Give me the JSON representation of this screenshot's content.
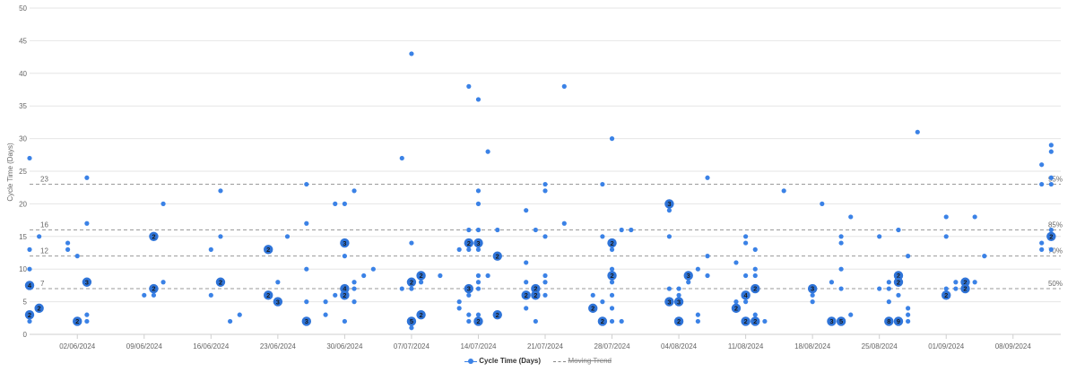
{
  "chart_data": {
    "type": "scatter",
    "ylabel": "Cycle Time (Days)",
    "ylim": [
      0,
      50
    ],
    "y_ticks": [
      "0",
      "5",
      "10",
      "15",
      "20",
      "25",
      "30",
      "35",
      "40",
      "45",
      "50"
    ],
    "x_range": [
      "2024-05-28",
      "2024-09-13"
    ],
    "x_ticks": [
      {
        "date": "2024-06-02",
        "label": "02/06/2024"
      },
      {
        "date": "2024-06-09",
        "label": "09/06/2024"
      },
      {
        "date": "2024-06-16",
        "label": "16/06/2024"
      },
      {
        "date": "2024-06-23",
        "label": "23/06/2024"
      },
      {
        "date": "2024-06-30",
        "label": "30/06/2024"
      },
      {
        "date": "2024-07-07",
        "label": "07/07/2024"
      },
      {
        "date": "2024-07-14",
        "label": "14/07/2024"
      },
      {
        "date": "2024-07-21",
        "label": "21/07/2024"
      },
      {
        "date": "2024-07-28",
        "label": "28/07/2024"
      },
      {
        "date": "2024-08-04",
        "label": "04/08/2024"
      },
      {
        "date": "2024-08-11",
        "label": "11/08/2024"
      },
      {
        "date": "2024-08-18",
        "label": "18/08/2024"
      },
      {
        "date": "2024-08-25",
        "label": "25/08/2024"
      },
      {
        "date": "2024-09-01",
        "label": "01/09/2024"
      },
      {
        "date": "2024-09-08",
        "label": "08/09/2024"
      }
    ],
    "percentiles": [
      {
        "label": "50%",
        "value": 7
      },
      {
        "label": "70%",
        "value": 12
      },
      {
        "label": "85%",
        "value": 16
      },
      {
        "label": "95%",
        "value": 23
      }
    ],
    "legend": [
      {
        "label": "Cycle Time (Days)",
        "style": "point"
      },
      {
        "label": "Moving Trend",
        "style": "dashed",
        "hidden": true
      }
    ],
    "colors": {
      "point": "#3b82e6",
      "bubble": "#2f74d8",
      "grid": "#e6e6e6",
      "percentile_line": "#9a9a9a"
    },
    "series": [
      {
        "name": "Cycle Time (Days)",
        "points": [
          {
            "x": "2024-05-28",
            "y": 27
          },
          {
            "x": "2024-05-28",
            "y": 13
          },
          {
            "x": "2024-05-28",
            "y": 10
          },
          {
            "x": "2024-05-28",
            "y": 7.5,
            "count": 4
          },
          {
            "x": "2024-05-28",
            "y": 3,
            "count": 2
          },
          {
            "x": "2024-05-28",
            "y": 2
          },
          {
            "x": "2024-05-29",
            "y": 15
          },
          {
            "x": "2024-05-29",
            "y": 4,
            "count": 2
          },
          {
            "x": "2024-06-01",
            "y": 14
          },
          {
            "x": "2024-06-01",
            "y": 13
          },
          {
            "x": "2024-06-02",
            "y": 12
          },
          {
            "x": "2024-06-02",
            "y": 2,
            "count": 2
          },
          {
            "x": "2024-06-03",
            "y": 24
          },
          {
            "x": "2024-06-03",
            "y": 17
          },
          {
            "x": "2024-06-03",
            "y": 8,
            "count": 3
          },
          {
            "x": "2024-06-03",
            "y": 3
          },
          {
            "x": "2024-06-03",
            "y": 2
          },
          {
            "x": "2024-06-09",
            "y": 6
          },
          {
            "x": "2024-06-10",
            "y": 15,
            "count": 2
          },
          {
            "x": "2024-06-10",
            "y": 7,
            "count": 2
          },
          {
            "x": "2024-06-10",
            "y": 6
          },
          {
            "x": "2024-06-11",
            "y": 20
          },
          {
            "x": "2024-06-11",
            "y": 8
          },
          {
            "x": "2024-06-16",
            "y": 13
          },
          {
            "x": "2024-06-16",
            "y": 6
          },
          {
            "x": "2024-06-17",
            "y": 22
          },
          {
            "x": "2024-06-17",
            "y": 15
          },
          {
            "x": "2024-06-17",
            "y": 8,
            "count": 2
          },
          {
            "x": "2024-06-18",
            "y": 2
          },
          {
            "x": "2024-06-19",
            "y": 3
          },
          {
            "x": "2024-06-22",
            "y": 13,
            "count": 2
          },
          {
            "x": "2024-06-22",
            "y": 6,
            "count": 2
          },
          {
            "x": "2024-06-23",
            "y": 8
          },
          {
            "x": "2024-06-23",
            "y": 5,
            "count": 3
          },
          {
            "x": "2024-06-24",
            "y": 15
          },
          {
            "x": "2024-06-26",
            "y": 23
          },
          {
            "x": "2024-06-26",
            "y": 17
          },
          {
            "x": "2024-06-26",
            "y": 10
          },
          {
            "x": "2024-06-26",
            "y": 5
          },
          {
            "x": "2024-06-26",
            "y": 2,
            "count": 3
          },
          {
            "x": "2024-06-28",
            "y": 5
          },
          {
            "x": "2024-06-28",
            "y": 3
          },
          {
            "x": "2024-06-29",
            "y": 20
          },
          {
            "x": "2024-06-29",
            "y": 6
          },
          {
            "x": "2024-06-30",
            "y": 20
          },
          {
            "x": "2024-06-30",
            "y": 14,
            "count": 3
          },
          {
            "x": "2024-06-30",
            "y": 12
          },
          {
            "x": "2024-06-30",
            "y": 7,
            "count": 4
          },
          {
            "x": "2024-06-30",
            "y": 6,
            "count": 2
          },
          {
            "x": "2024-06-30",
            "y": 2
          },
          {
            "x": "2024-07-01",
            "y": 22
          },
          {
            "x": "2024-07-01",
            "y": 8
          },
          {
            "x": "2024-07-01",
            "y": 7
          },
          {
            "x": "2024-07-01",
            "y": 5
          },
          {
            "x": "2024-07-02",
            "y": 9
          },
          {
            "x": "2024-07-03",
            "y": 10
          },
          {
            "x": "2024-07-06",
            "y": 27
          },
          {
            "x": "2024-07-06",
            "y": 7
          },
          {
            "x": "2024-07-07",
            "y": 43
          },
          {
            "x": "2024-07-07",
            "y": 14
          },
          {
            "x": "2024-07-07",
            "y": 8,
            "count": 2
          },
          {
            "x": "2024-07-07",
            "y": 7
          },
          {
            "x": "2024-07-07",
            "y": 2,
            "count": 5
          },
          {
            "x": "2024-07-07",
            "y": 1
          },
          {
            "x": "2024-07-08",
            "y": 9,
            "count": 2
          },
          {
            "x": "2024-07-08",
            "y": 8
          },
          {
            "x": "2024-07-08",
            "y": 3,
            "count": 2
          },
          {
            "x": "2024-07-10",
            "y": 9
          },
          {
            "x": "2024-07-12",
            "y": 5
          },
          {
            "x": "2024-07-12",
            "y": 4
          },
          {
            "x": "2024-07-12",
            "y": 13
          },
          {
            "x": "2024-07-13",
            "y": 38
          },
          {
            "x": "2024-07-13",
            "y": 16
          },
          {
            "x": "2024-07-13",
            "y": 14,
            "count": 2
          },
          {
            "x": "2024-07-13",
            "y": 13
          },
          {
            "x": "2024-07-13",
            "y": 7,
            "count": 3
          },
          {
            "x": "2024-07-13",
            "y": 6
          },
          {
            "x": "2024-07-13",
            "y": 3
          },
          {
            "x": "2024-07-13",
            "y": 2
          },
          {
            "x": "2024-07-14",
            "y": 36
          },
          {
            "x": "2024-07-14",
            "y": 22
          },
          {
            "x": "2024-07-14",
            "y": 20
          },
          {
            "x": "2024-07-14",
            "y": 16
          },
          {
            "x": "2024-07-14",
            "y": 14,
            "count": 3
          },
          {
            "x": "2024-07-14",
            "y": 13
          },
          {
            "x": "2024-07-14",
            "y": 9
          },
          {
            "x": "2024-07-14",
            "y": 8
          },
          {
            "x": "2024-07-14",
            "y": 7
          },
          {
            "x": "2024-07-14",
            "y": 3
          },
          {
            "x": "2024-07-14",
            "y": 2,
            "count": 2
          },
          {
            "x": "2024-07-15",
            "y": 28
          },
          {
            "x": "2024-07-15",
            "y": 9
          },
          {
            "x": "2024-07-16",
            "y": 16
          },
          {
            "x": "2024-07-16",
            "y": 12,
            "count": 2
          },
          {
            "x": "2024-07-16",
            "y": 3,
            "count": 2
          },
          {
            "x": "2024-07-19",
            "y": 19
          },
          {
            "x": "2024-07-19",
            "y": 11
          },
          {
            "x": "2024-07-19",
            "y": 8
          },
          {
            "x": "2024-07-19",
            "y": 6,
            "count": 2
          },
          {
            "x": "2024-07-19",
            "y": 4
          },
          {
            "x": "2024-07-20",
            "y": 16
          },
          {
            "x": "2024-07-20",
            "y": 7,
            "count": 2
          },
          {
            "x": "2024-07-20",
            "y": 6,
            "count": 2
          },
          {
            "x": "2024-07-20",
            "y": 2
          },
          {
            "x": "2024-07-21",
            "y": 23
          },
          {
            "x": "2024-07-21",
            "y": 22
          },
          {
            "x": "2024-07-21",
            "y": 15
          },
          {
            "x": "2024-07-21",
            "y": 9
          },
          {
            "x": "2024-07-21",
            "y": 8
          },
          {
            "x": "2024-07-21",
            "y": 6
          },
          {
            "x": "2024-07-23",
            "y": 38
          },
          {
            "x": "2024-07-23",
            "y": 17
          },
          {
            "x": "2024-07-26",
            "y": 6
          },
          {
            "x": "2024-07-26",
            "y": 4,
            "count": 2
          },
          {
            "x": "2024-07-27",
            "y": 23
          },
          {
            "x": "2024-07-27",
            "y": 15
          },
          {
            "x": "2024-07-27",
            "y": 5
          },
          {
            "x": "2024-07-27",
            "y": 2,
            "count": 2
          },
          {
            "x": "2024-07-28",
            "y": 30
          },
          {
            "x": "2024-07-28",
            "y": 14,
            "count": 2
          },
          {
            "x": "2024-07-28",
            "y": 13
          },
          {
            "x": "2024-07-28",
            "y": 10
          },
          {
            "x": "2024-07-28",
            "y": 9,
            "count": 2
          },
          {
            "x": "2024-07-28",
            "y": 8
          },
          {
            "x": "2024-07-28",
            "y": 6
          },
          {
            "x": "2024-07-28",
            "y": 4
          },
          {
            "x": "2024-07-28",
            "y": 2
          },
          {
            "x": "2024-07-29",
            "y": 16
          },
          {
            "x": "2024-07-29",
            "y": 2
          },
          {
            "x": "2024-07-30",
            "y": 16
          },
          {
            "x": "2024-08-03",
            "y": 20,
            "count": 3
          },
          {
            "x": "2024-08-03",
            "y": 19
          },
          {
            "x": "2024-08-03",
            "y": 15
          },
          {
            "x": "2024-08-03",
            "y": 7
          },
          {
            "x": "2024-08-03",
            "y": 5,
            "count": 3
          },
          {
            "x": "2024-08-04",
            "y": 7
          },
          {
            "x": "2024-08-04",
            "y": 6
          },
          {
            "x": "2024-08-04",
            "y": 5,
            "count": 3
          },
          {
            "x": "2024-08-04",
            "y": 2,
            "count": 2
          },
          {
            "x": "2024-08-05",
            "y": 9,
            "count": 3
          },
          {
            "x": "2024-08-05",
            "y": 8
          },
          {
            "x": "2024-08-06",
            "y": 10
          },
          {
            "x": "2024-08-06",
            "y": 3
          },
          {
            "x": "2024-08-06",
            "y": 2
          },
          {
            "x": "2024-08-07",
            "y": 24
          },
          {
            "x": "2024-08-07",
            "y": 12
          },
          {
            "x": "2024-08-07",
            "y": 9
          },
          {
            "x": "2024-08-10",
            "y": 11
          },
          {
            "x": "2024-08-10",
            "y": 5
          },
          {
            "x": "2024-08-10",
            "y": 4,
            "count": 2
          },
          {
            "x": "2024-08-11",
            "y": 15
          },
          {
            "x": "2024-08-11",
            "y": 14
          },
          {
            "x": "2024-08-11",
            "y": 9
          },
          {
            "x": "2024-08-11",
            "y": 6,
            "count": 4
          },
          {
            "x": "2024-08-11",
            "y": 5
          },
          {
            "x": "2024-08-11",
            "y": 2,
            "count": 2
          },
          {
            "x": "2024-08-12",
            "y": 13
          },
          {
            "x": "2024-08-12",
            "y": 10
          },
          {
            "x": "2024-08-12",
            "y": 9
          },
          {
            "x": "2024-08-12",
            "y": 7,
            "count": 2
          },
          {
            "x": "2024-08-12",
            "y": 3
          },
          {
            "x": "2024-08-12",
            "y": 2,
            "count": 2
          },
          {
            "x": "2024-08-13",
            "y": 2
          },
          {
            "x": "2024-08-15",
            "y": 22
          },
          {
            "x": "2024-08-18",
            "y": 7,
            "count": 3
          },
          {
            "x": "2024-08-18",
            "y": 6
          },
          {
            "x": "2024-08-18",
            "y": 5
          },
          {
            "x": "2024-08-19",
            "y": 20
          },
          {
            "x": "2024-08-20",
            "y": 8
          },
          {
            "x": "2024-08-20",
            "y": 2,
            "count": 3
          },
          {
            "x": "2024-08-21",
            "y": 15
          },
          {
            "x": "2024-08-21",
            "y": 14
          },
          {
            "x": "2024-08-21",
            "y": 10
          },
          {
            "x": "2024-08-21",
            "y": 7
          },
          {
            "x": "2024-08-21",
            "y": 2,
            "count": 5
          },
          {
            "x": "2024-08-22",
            "y": 18
          },
          {
            "x": "2024-08-22",
            "y": 3
          },
          {
            "x": "2024-08-25",
            "y": 15
          },
          {
            "x": "2024-08-25",
            "y": 7
          },
          {
            "x": "2024-08-26",
            "y": 8
          },
          {
            "x": "2024-08-26",
            "y": 7
          },
          {
            "x": "2024-08-26",
            "y": 5
          },
          {
            "x": "2024-08-26",
            "y": 2,
            "count": 8
          },
          {
            "x": "2024-08-27",
            "y": 16
          },
          {
            "x": "2024-08-27",
            "y": 9,
            "count": 2
          },
          {
            "x": "2024-08-27",
            "y": 8,
            "count": 2
          },
          {
            "x": "2024-08-27",
            "y": 6
          },
          {
            "x": "2024-08-27",
            "y": 2,
            "count": 9
          },
          {
            "x": "2024-08-28",
            "y": 12
          },
          {
            "x": "2024-08-28",
            "y": 4
          },
          {
            "x": "2024-08-28",
            "y": 3
          },
          {
            "x": "2024-08-28",
            "y": 2
          },
          {
            "x": "2024-08-29",
            "y": 31
          },
          {
            "x": "2024-09-01",
            "y": 18
          },
          {
            "x": "2024-09-01",
            "y": 15
          },
          {
            "x": "2024-09-01",
            "y": 7
          },
          {
            "x": "2024-09-01",
            "y": 6,
            "count": 2
          },
          {
            "x": "2024-09-02",
            "y": 7
          },
          {
            "x": "2024-09-02",
            "y": 8
          },
          {
            "x": "2024-09-03",
            "y": 8,
            "count": 2
          },
          {
            "x": "2024-09-03",
            "y": 7,
            "count": 2
          },
          {
            "x": "2024-09-04",
            "y": 18
          },
          {
            "x": "2024-09-04",
            "y": 8
          },
          {
            "x": "2024-09-05",
            "y": 12
          },
          {
            "x": "2024-09-11",
            "y": 26
          },
          {
            "x": "2024-09-11",
            "y": 23
          },
          {
            "x": "2024-09-11",
            "y": 14
          },
          {
            "x": "2024-09-11",
            "y": 13
          },
          {
            "x": "2024-09-12",
            "y": 29
          },
          {
            "x": "2024-09-12",
            "y": 28
          },
          {
            "x": "2024-09-12",
            "y": 24
          },
          {
            "x": "2024-09-12",
            "y": 23
          },
          {
            "x": "2024-09-12",
            "y": 16
          },
          {
            "x": "2024-09-12",
            "y": 15,
            "count": 2
          },
          {
            "x": "2024-09-12",
            "y": 13
          }
        ]
      }
    ]
  }
}
